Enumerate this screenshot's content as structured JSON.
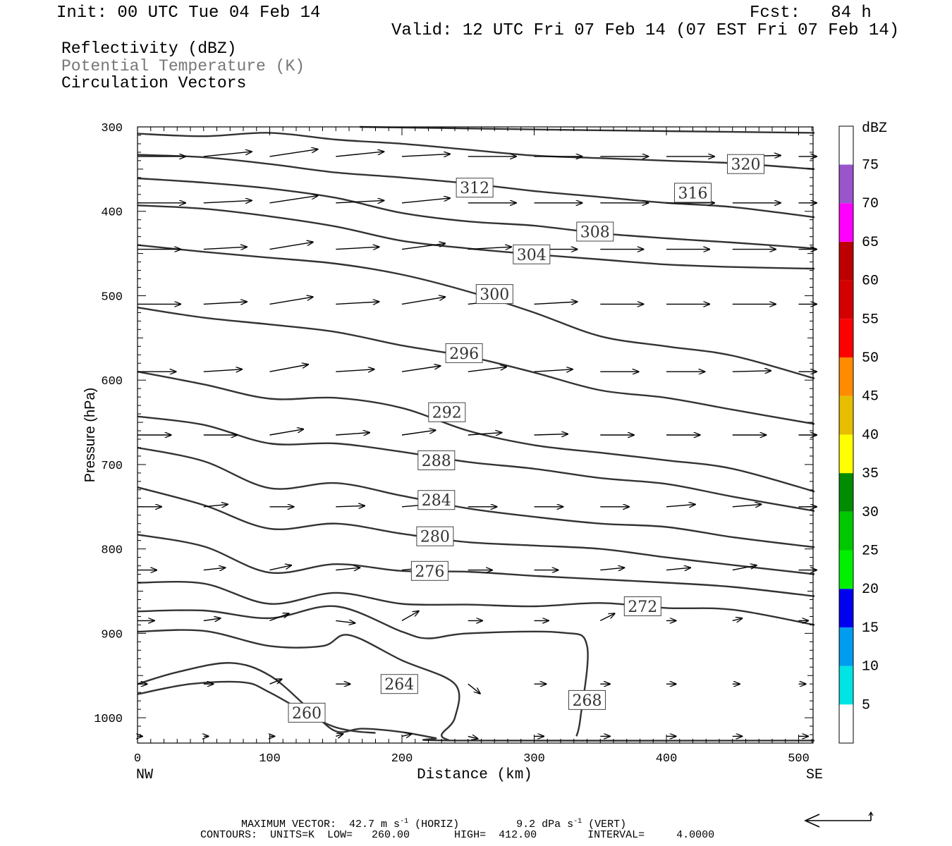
{
  "header": {
    "init": "Init: 00 UTC Tue 04 Feb 14",
    "fcst": "Fcst:   84 h",
    "valid": "Valid: 12 UTC Fri 07 Feb 14 (07 EST Fri 07 Feb 14)"
  },
  "legend": {
    "line1": "Reflectivity (dBZ)",
    "line2": "Potential Temperature (K)",
    "line3": "Circulation Vectors"
  },
  "footer": {
    "max_vector_label": "MAXIMUM VECTOR:",
    "horiz_value": "42.7 m s",
    "horiz_unit": "(HORIZ)",
    "vert_value": "9.2 dPa s",
    "vert_unit": "(VERT)",
    "exponent": "-1",
    "contours": "CONTOURS:  UNITS=K  LOW=   260.00       HIGH=  412.00        INTERVAL=     4.0000"
  },
  "colors": {
    "contour": "#333333",
    "vector": "#000000",
    "frame": "#000000"
  },
  "colorbar": {
    "title": "dBZ",
    "levels": [
      5,
      10,
      15,
      20,
      25,
      30,
      35,
      40,
      45,
      50,
      55,
      60,
      65,
      70,
      75
    ],
    "colors": [
      "#ffffff",
      "#00e4e4",
      "#009cf0",
      "#0000f0",
      "#00f000",
      "#00c800",
      "#008c00",
      "#ffff00",
      "#e6be00",
      "#ff8c00",
      "#ff0000",
      "#d40000",
      "#bc0000",
      "#ff00ff",
      "#9955cc",
      "#ffffff"
    ]
  },
  "chart_data": {
    "type": "contour",
    "xlabel": "Distance (km)",
    "ylabel": "Pressure (hPa)",
    "xlim": [
      0,
      512
    ],
    "ylim": [
      1030,
      300
    ],
    "x_ticks": [
      "0",
      "100",
      "200",
      "300",
      "400",
      "500"
    ],
    "y_ticks": [
      "300",
      "400",
      "500",
      "600",
      "700",
      "800",
      "900",
      "1000"
    ],
    "x_end_labels": [
      "NW",
      "SE"
    ],
    "contour_labels": [
      {
        "value": "320",
        "x": 460,
        "p": 344
      },
      {
        "value": "316",
        "x": 420,
        "p": 378
      },
      {
        "value": "312",
        "x": 255,
        "p": 372
      },
      {
        "value": "308",
        "x": 346,
        "p": 424
      },
      {
        "value": "304",
        "x": 298,
        "p": 451
      },
      {
        "value": "300",
        "x": 270,
        "p": 498
      },
      {
        "value": "296",
        "x": 247,
        "p": 568
      },
      {
        "value": "292",
        "x": 234,
        "p": 638
      },
      {
        "value": "288",
        "x": 226,
        "p": 695
      },
      {
        "value": "284",
        "x": 226,
        "p": 742
      },
      {
        "value": "280",
        "x": 225,
        "p": 785
      },
      {
        "value": "276",
        "x": 221,
        "p": 826
      },
      {
        "value": "272",
        "x": 382,
        "p": 868
      },
      {
        "value": "268",
        "x": 340,
        "p": 979
      },
      {
        "value": "264",
        "x": 198,
        "p": 960
      },
      {
        "value": "260",
        "x": 128,
        "p": 994
      }
    ],
    "contours": [
      {
        "value": 320,
        "points": [
          [
            168,
            300
          ],
          [
            300,
            303
          ],
          [
            400,
            305
          ],
          [
            512,
            307
          ]
        ]
      },
      {
        "value": 316,
        "points": [
          [
            0,
            308
          ],
          [
            50,
            311
          ],
          [
            100,
            307
          ],
          [
            150,
            315
          ],
          [
            200,
            320
          ],
          [
            250,
            327
          ],
          [
            300,
            334
          ],
          [
            350,
            337
          ],
          [
            400,
            340
          ],
          [
            450,
            343
          ],
          [
            512,
            350
          ]
        ]
      },
      {
        "value": 312,
        "points": [
          [
            0,
            333
          ],
          [
            50,
            336
          ],
          [
            100,
            344
          ],
          [
            150,
            354
          ],
          [
            200,
            360
          ],
          [
            250,
            367
          ],
          [
            300,
            376
          ],
          [
            350,
            383
          ],
          [
            400,
            390
          ],
          [
            450,
            395
          ],
          [
            512,
            407
          ]
        ]
      },
      {
        "value": 308,
        "points": [
          [
            0,
            361
          ],
          [
            50,
            366
          ],
          [
            100,
            373
          ],
          [
            150,
            384
          ],
          [
            200,
            402
          ],
          [
            250,
            412
          ],
          [
            300,
            417
          ],
          [
            350,
            426
          ],
          [
            400,
            432
          ],
          [
            450,
            437
          ],
          [
            512,
            444
          ]
        ]
      },
      {
        "value": 304,
        "points": [
          [
            0,
            393
          ],
          [
            50,
            397
          ],
          [
            100,
            406
          ],
          [
            150,
            418
          ],
          [
            200,
            435
          ],
          [
            250,
            444
          ],
          [
            300,
            451
          ],
          [
            350,
            457
          ],
          [
            400,
            463
          ],
          [
            450,
            466
          ],
          [
            512,
            468
          ]
        ]
      },
      {
        "value": 300,
        "points": [
          [
            0,
            440
          ],
          [
            50,
            448
          ],
          [
            100,
            455
          ],
          [
            150,
            462
          ],
          [
            200,
            475
          ],
          [
            250,
            495
          ],
          [
            300,
            520
          ],
          [
            350,
            548
          ],
          [
            400,
            560
          ],
          [
            450,
            571
          ],
          [
            512,
            598
          ]
        ]
      },
      {
        "value": 296,
        "points": [
          [
            0,
            514
          ],
          [
            50,
            526
          ],
          [
            100,
            534
          ],
          [
            150,
            543
          ],
          [
            200,
            559
          ],
          [
            250,
            572
          ],
          [
            300,
            591
          ],
          [
            350,
            612
          ],
          [
            400,
            621
          ],
          [
            450,
            635
          ],
          [
            512,
            652
          ]
        ]
      },
      {
        "value": 292,
        "points": [
          [
            0,
            590
          ],
          [
            50,
            605
          ],
          [
            100,
            622
          ],
          [
            150,
            621
          ],
          [
            200,
            633
          ],
          [
            250,
            660
          ],
          [
            300,
            677
          ],
          [
            350,
            686
          ],
          [
            400,
            695
          ],
          [
            450,
            705
          ],
          [
            512,
            732
          ]
        ]
      },
      {
        "value": 288,
        "points": [
          [
            0,
            643
          ],
          [
            50,
            653
          ],
          [
            100,
            675
          ],
          [
            150,
            675
          ],
          [
            200,
            685
          ],
          [
            250,
            697
          ],
          [
            300,
            705
          ],
          [
            350,
            716
          ],
          [
            400,
            723
          ],
          [
            450,
            738
          ],
          [
            512,
            755
          ]
        ]
      },
      {
        "value": 284,
        "points": [
          [
            0,
            680
          ],
          [
            50,
            696
          ],
          [
            100,
            728
          ],
          [
            150,
            722
          ],
          [
            200,
            737
          ],
          [
            250,
            752
          ],
          [
            300,
            762
          ],
          [
            350,
            770
          ],
          [
            400,
            774
          ],
          [
            450,
            786
          ],
          [
            512,
            798
          ]
        ]
      },
      {
        "value": 280,
        "points": [
          [
            0,
            727
          ],
          [
            50,
            748
          ],
          [
            100,
            776
          ],
          [
            150,
            770
          ],
          [
            200,
            782
          ],
          [
            250,
            792
          ],
          [
            300,
            796
          ],
          [
            350,
            800
          ],
          [
            400,
            810
          ],
          [
            450,
            819
          ],
          [
            512,
            830
          ]
        ]
      },
      {
        "value": 276,
        "points": [
          [
            0,
            783
          ],
          [
            50,
            797
          ],
          [
            100,
            828
          ],
          [
            150,
            818
          ],
          [
            200,
            826
          ],
          [
            250,
            827
          ],
          [
            300,
            832
          ],
          [
            350,
            836
          ],
          [
            400,
            840
          ],
          [
            450,
            845
          ],
          [
            512,
            856
          ]
        ]
      },
      {
        "value": 272,
        "points": [
          [
            0,
            840
          ],
          [
            50,
            841
          ],
          [
            100,
            865
          ],
          [
            150,
            852
          ],
          [
            200,
            865
          ],
          [
            250,
            866
          ],
          [
            300,
            868
          ],
          [
            350,
            864
          ],
          [
            400,
            870
          ],
          [
            450,
            872
          ],
          [
            512,
            890
          ]
        ]
      },
      {
        "value": 268,
        "points": [
          [
            0,
            874
          ],
          [
            50,
            873
          ],
          [
            100,
            882
          ],
          [
            150,
            868
          ],
          [
            200,
            898
          ],
          [
            220,
            906
          ],
          [
            250,
            900
          ],
          [
            320,
            899
          ],
          [
            340,
            915
          ],
          [
            335,
            1000
          ],
          [
            332,
            1022
          ]
        ]
      },
      {
        "value": 264,
        "points": [
          [
            0,
            898
          ],
          [
            50,
            897
          ],
          [
            100,
            915
          ],
          [
            140,
            915
          ],
          [
            160,
            902
          ],
          [
            200,
            932
          ],
          [
            240,
            960
          ],
          [
            240,
            1000
          ],
          [
            230,
            1020
          ],
          [
            236,
            1027
          ]
        ]
      },
      {
        "value": 260,
        "points": [
          [
            0,
            960
          ],
          [
            30,
            946
          ],
          [
            70,
            935
          ],
          [
            100,
            950
          ],
          [
            130,
            990
          ],
          [
            150,
            1016
          ],
          [
            170,
            1013
          ],
          [
            200,
            1017
          ],
          [
            225,
            1024
          ],
          [
            240,
            1027
          ],
          [
            512,
            1027
          ]
        ]
      },
      {
        "value": 260,
        "points": [
          [
            0,
            972
          ],
          [
            40,
            960
          ],
          [
            80,
            958
          ],
          [
            100,
            970
          ],
          [
            140,
            1005
          ],
          [
            160,
            1015
          ],
          [
            180,
            1018
          ]
        ]
      }
    ],
    "vectors": {
      "x": [
        0,
        50,
        100,
        150,
        200,
        250,
        300,
        350,
        400,
        450,
        500
      ],
      "rows": [
        {
          "p": 335,
          "u": [
            1,
            1,
            1,
            1,
            1,
            1,
            1,
            1,
            1,
            1,
            1
          ],
          "w": [
            0,
            0.1,
            0.15,
            0.1,
            0.05,
            0,
            0,
            0,
            0,
            0.02,
            0
          ]
        },
        {
          "p": 390,
          "u": [
            1,
            1,
            1,
            1,
            1,
            1,
            1,
            1,
            1,
            1,
            1
          ],
          "w": [
            0,
            0.05,
            0.15,
            0.05,
            0.1,
            0,
            0,
            0,
            0,
            0,
            0
          ]
        },
        {
          "p": 445,
          "u": [
            0.9,
            0.9,
            0.9,
            0.9,
            0.9,
            0.9,
            0.9,
            0.9,
            0.9,
            0.9,
            0.9
          ],
          "w": [
            0,
            0.05,
            0.15,
            0.05,
            0.12,
            0.05,
            0,
            0,
            0,
            0,
            0
          ]
        },
        {
          "p": 510,
          "u": [
            0.9,
            0.9,
            0.9,
            0.9,
            0.9,
            0.9,
            0.9,
            0.9,
            0.9,
            0.9,
            0.9
          ],
          "w": [
            0,
            0.05,
            0.15,
            0.05,
            0.15,
            0.1,
            0.05,
            0,
            0,
            0,
            0
          ]
        },
        {
          "p": 590,
          "u": [
            0.8,
            0.8,
            0.8,
            0.8,
            0.8,
            0.8,
            0.8,
            0.8,
            0.8,
            0.8,
            0.8
          ],
          "w": [
            0,
            0.05,
            0.15,
            0.05,
            0.12,
            0.1,
            0.05,
            0,
            0,
            0.02,
            0
          ]
        },
        {
          "p": 665,
          "u": [
            0.7,
            0.7,
            0.7,
            0.7,
            0.7,
            0.7,
            0.7,
            0.7,
            0.7,
            0.7,
            0.7
          ],
          "w": [
            0,
            0,
            0.12,
            0.05,
            0.1,
            0.05,
            0.02,
            0,
            0,
            0,
            0
          ]
        },
        {
          "p": 750,
          "u": [
            0.5,
            0.5,
            0.5,
            0.6,
            0.6,
            0.6,
            0.6,
            0.6,
            0.6,
            0.6,
            0.5
          ],
          "w": [
            0,
            0.05,
            0,
            0.02,
            0.05,
            0,
            0,
            0,
            0.05,
            0.05,
            0
          ]
        },
        {
          "p": 825,
          "u": [
            0.4,
            0.45,
            0.45,
            0.5,
            0.5,
            0.5,
            0.5,
            0.5,
            0.5,
            0.5,
            0.45
          ],
          "w": [
            0,
            0.05,
            0.1,
            0.05,
            0.05,
            0,
            0,
            0.05,
            0.05,
            0.1,
            0
          ]
        },
        {
          "p": 885,
          "u": [
            0.35,
            0.35,
            0.4,
            0.4,
            0.35,
            0.3,
            0.3,
            0.3,
            0.2,
            0.2,
            0.2
          ],
          "w": [
            0,
            0.05,
            0.15,
            -0.05,
            0.2,
            0,
            0,
            0.15,
            0,
            0.05,
            0
          ]
        },
        {
          "p": 960,
          "u": [
            0.2,
            0.2,
            0.25,
            0.3,
            0.25,
            0.25,
            0.25,
            0.2,
            0.2,
            0.15,
            0.15
          ],
          "w": [
            0,
            0,
            0.1,
            0,
            0.1,
            -0.2,
            0,
            0,
            0,
            0,
            0
          ]
        },
        {
          "p": 1022,
          "u": [
            0.1,
            0.1,
            0.1,
            0.15,
            0.2,
            0.2,
            0.2,
            0.2,
            0.2,
            0.2,
            0.2
          ],
          "w": [
            0,
            0,
            0,
            0.05,
            0.05,
            -0.05,
            0,
            0,
            0,
            0,
            0
          ]
        }
      ]
    }
  }
}
